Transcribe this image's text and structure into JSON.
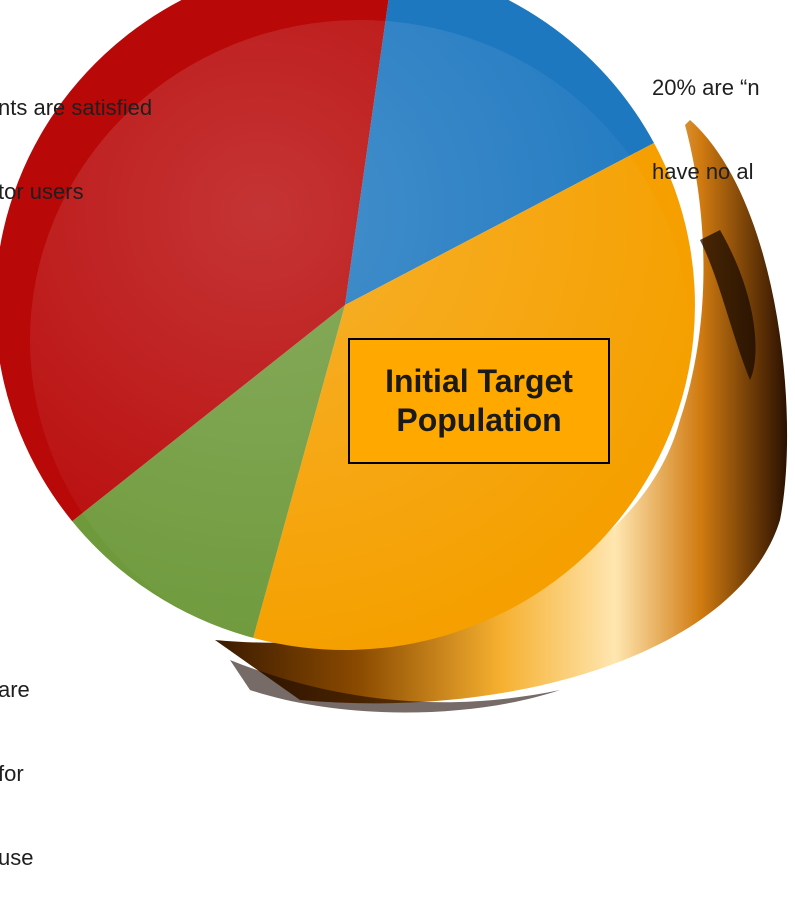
{
  "chart_data": {
    "type": "pie",
    "title": "",
    "slices": [
      {
        "label": "",
        "value": 15,
        "color": "#1e78c0"
      },
      {
        "label": "Initial Target Population",
        "value": 37,
        "color": "#f5a000"
      },
      {
        "label": "",
        "value": 10,
        "color": "#6f9a3c"
      },
      {
        "label": "",
        "value": 38,
        "color": "#b80808"
      }
    ],
    "center_label_lines": [
      "Initial Target",
      "Population"
    ],
    "annotations": {
      "top_left": [
        "nts are satisfied",
        "tor users"
      ],
      "top_right": [
        "20% are “n",
        "have no al"
      ],
      "bottom_left": [
        "are",
        "for",
        "use"
      ]
    },
    "colors": {
      "blue": "#1e78c0",
      "orange": "#f5a000",
      "green": "#6f9a3c",
      "red": "#b80808",
      "label_box": "#ffa800"
    }
  }
}
